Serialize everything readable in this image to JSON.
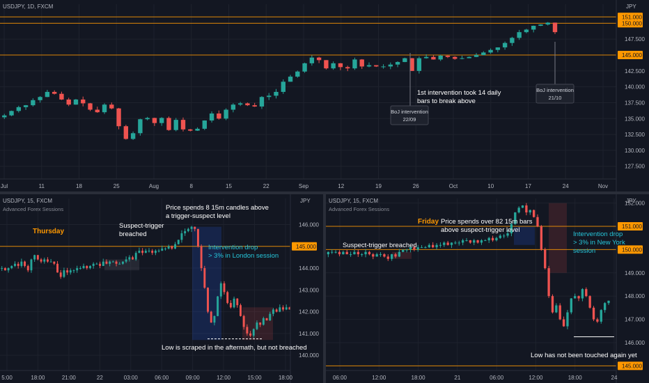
{
  "colors": {
    "background": "#131722",
    "up": "#26a69a",
    "down": "#ef5350",
    "level_line": "#ff9800",
    "level_label_bg": "#ff9800",
    "annotation_text": "#ffffff",
    "intervention_text": "#26c6da",
    "day_label": "#ff9800",
    "grid": "#1e222d",
    "axis_text": "#b2b5be"
  },
  "chart_data": [
    {
      "type": "candlestick",
      "title": "USDJPY, 1D, FXCM",
      "y_axis_unit": "JPY",
      "ylim": [
        125.5,
        153
      ],
      "y_ticks": [
        "127.500",
        "130.000",
        "132.500",
        "135.000",
        "137.500",
        "140.000",
        "142.500",
        "145.000",
        "147.500",
        "150.000",
        "151.000"
      ],
      "x_labels": [
        "Jul",
        "11",
        "18",
        "25",
        "Aug",
        "8",
        "15",
        "22",
        "Sep",
        "12",
        "19",
        "26",
        "Oct",
        "10",
        "17",
        "24",
        "Nov"
      ],
      "levels": [
        {
          "value": 151.0,
          "label": "151.000"
        },
        {
          "value": 150.0,
          "label": "150.000"
        },
        {
          "value": 145.0,
          "label": "145.000"
        }
      ],
      "price_path": [
        135.2,
        135.5,
        136.2,
        136.8,
        137.1,
        137.9,
        138.4,
        139.2,
        138.9,
        138.0,
        137.2,
        138.0,
        137.4,
        136.4,
        136.0,
        137.2,
        136.6,
        133.8,
        131.8,
        132.7,
        134.9,
        135.1,
        134.3,
        135.1,
        133.2,
        134.8,
        133.3,
        133.1,
        133.4,
        134.7,
        135.8,
        135.0,
        136.4,
        137.2,
        137.4,
        137.1,
        136.9,
        138.4,
        138.6,
        139.2,
        140.8,
        141.6,
        142.4,
        143.7,
        144.6,
        144.2,
        142.9,
        143.7,
        143.1,
        142.9,
        144.3,
        143.2,
        143.4,
        143.2,
        143.2,
        143.5,
        143.9,
        144.5,
        142.5,
        144.5,
        144.7,
        144.3,
        144.9,
        144.7,
        144.4,
        144.5,
        144.7,
        145.0,
        145.4,
        145.8,
        146.2,
        146.9,
        147.7,
        148.6,
        149.0,
        149.6,
        149.8,
        150.1,
        148.6
      ],
      "annotations": [
        {
          "label": "BoJ intervention",
          "date": "22/09"
        },
        {
          "label": "BoJ intervention",
          "date": "21/10"
        },
        {
          "text_line1": "1st intervention took 14 daily",
          "text_line2": "bars to break above"
        }
      ]
    },
    {
      "type": "candlestick",
      "title": "USDJPY, 15, FXCM",
      "indicator": "Advanced Forex Sessions",
      "y_axis_unit": "JPY",
      "ylim": [
        139.3,
        147.2
      ],
      "y_ticks": [
        "140.000",
        "141.000",
        "142.000",
        "143.000",
        "144.000",
        "145.000",
        "146.000"
      ],
      "x_labels": [
        "5:00",
        "18:00",
        "21:00",
        "22",
        "03:00",
        "06:00",
        "09:00",
        "12:00",
        "15:00",
        "18:00"
      ],
      "level": {
        "value": 145.0,
        "label": "145.000"
      },
      "price_path": [
        144.0,
        144.0,
        143.9,
        144.0,
        144.1,
        144.2,
        144.1,
        144.3,
        144.1,
        143.9,
        144.4,
        144.6,
        144.4,
        144.3,
        144.4,
        144.3,
        144.3,
        144.2,
        143.8,
        143.6,
        143.9,
        143.8,
        143.9,
        143.9,
        144.0,
        144.0,
        144.1,
        144.0,
        144.1,
        144.2,
        144.2,
        144.1,
        144.3,
        144.2,
        144.3,
        144.3,
        144.2,
        144.2,
        144.3,
        144.4,
        144.5,
        144.4,
        144.7,
        144.8,
        144.7,
        144.8,
        144.8,
        144.7,
        144.8,
        144.8,
        144.9,
        144.9,
        145.0,
        144.9,
        145.1,
        145.3,
        145.6,
        145.7,
        145.8,
        145.9,
        145.8,
        145.0,
        144.0,
        143.1,
        142.0,
        141.5,
        141.8,
        142.7,
        143.3,
        142.9,
        142.4,
        142.2,
        142.6,
        142.3,
        141.8,
        141.3,
        141.0,
        140.9,
        141.2,
        141.5,
        141.4,
        141.7,
        141.6,
        141.9,
        142.1,
        142.0,
        142.2,
        142.1,
        142.2,
        142.1,
        142.2,
        142.2,
        142.1
      ],
      "day_label": "Thursday",
      "annotations": [
        {
          "line1": "Suspect-trigger",
          "line2": "breached"
        },
        {
          "line1": "Price spends 8 15m candles above",
          "line2": "a trigger-suspect level"
        },
        {
          "line1": "Intervention drop",
          "line2": "> 3% in London session"
        },
        {
          "line1": "Low is scraped in the aftermath, but not breached"
        }
      ]
    },
    {
      "type": "candlestick",
      "title": "USDJPY, 15, FXCM",
      "indicator": "Advanced Forex Sessions",
      "y_axis_unit": "JPY",
      "ylim": [
        144.8,
        152.2
      ],
      "y_ticks": [
        "145.000",
        "146.000",
        "147.000",
        "148.000",
        "149.000",
        "150.000",
        "151.000",
        "152.000"
      ],
      "x_labels": [
        "06:00",
        "12:00",
        "18:00",
        "21",
        "06:00",
        "12:00",
        "18:00",
        "24"
      ],
      "levels": [
        {
          "value": 151.0,
          "label": "151.000"
        },
        {
          "value": 150.0,
          "label": "150.000"
        },
        {
          "value": 145.0,
          "label": "145.000"
        }
      ],
      "price_path": [
        149.8,
        149.9,
        149.9,
        149.9,
        149.8,
        149.9,
        149.8,
        149.8,
        149.9,
        149.8,
        149.8,
        149.9,
        149.8,
        149.7,
        149.8,
        149.8,
        149.7,
        149.6,
        149.8,
        149.7,
        149.9,
        150.0,
        150.0,
        150.1,
        150.0,
        150.1,
        150.1,
        150.1,
        150.2,
        150.1,
        150.2,
        150.2,
        150.3,
        150.2,
        150.3,
        150.3,
        150.3,
        150.4,
        150.4,
        150.3,
        150.4,
        150.3,
        150.4,
        150.4,
        150.5,
        150.4,
        150.5,
        150.6,
        150.6,
        150.7,
        151.1,
        151.6,
        151.8,
        151.9,
        151.6,
        151.7,
        151.4,
        151.0,
        150.0,
        149.2,
        148.0,
        147.3,
        147.6,
        147.0,
        146.7,
        147.3,
        147.9,
        148.0,
        147.9,
        148.3,
        148.0,
        147.5,
        147.0,
        146.9,
        147.4,
        147.7,
        147.8
      ],
      "day_label": "Friday",
      "annotations": [
        {
          "line1": "Suspect-trigger breached"
        },
        {
          "line1": "Price spends over 82 15m bars",
          "line2": "above suspect-trigger level"
        },
        {
          "line1": "Intervention drop",
          "line2": "> 3% in New York",
          "line3": "session"
        },
        {
          "line1": "Low has not been touched again yet"
        }
      ]
    }
  ]
}
